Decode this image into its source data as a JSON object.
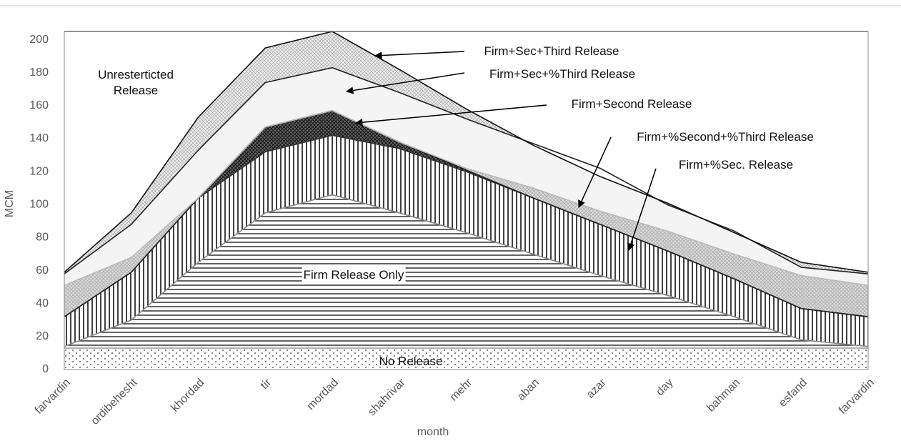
{
  "chart_data": {
    "type": "area",
    "x_label": "month",
    "y_label": "MCM",
    "categories": [
      "farvardin",
      "ordibehesht",
      "khordad",
      "tir",
      "mordad",
      "shahrivar",
      "mehr",
      "aban",
      "azar",
      "day",
      "bahman",
      "esfand",
      "farvardin"
    ],
    "ylim": [
      0,
      205
    ],
    "yticks": [
      0,
      20,
      40,
      60,
      80,
      100,
      120,
      140,
      160,
      180,
      200
    ],
    "grid": true,
    "series": [
      {
        "name": "No Release",
        "values": [
          13,
          13,
          13,
          13,
          13,
          13,
          13,
          13,
          13,
          13,
          13,
          13,
          13
        ]
      },
      {
        "name": "Firm Release Only",
        "values": [
          14,
          30,
          65,
          95,
          106,
          95,
          83,
          70,
          57,
          45,
          32,
          18,
          14
        ]
      },
      {
        "name": "Firm+%Sec. Release",
        "values": [
          32,
          59,
          104,
          132,
          142,
          134,
          120,
          104,
          88,
          72,
          55,
          37,
          32
        ]
      },
      {
        "name": "Firm+Second Release",
        "values": [
          32,
          59,
          104,
          147,
          157,
          138,
          121,
          104,
          88,
          72,
          55,
          37,
          32
        ]
      },
      {
        "name": "Firm+%Second+%Third Release",
        "values": [
          51,
          68,
          104,
          147,
          157,
          138,
          122,
          110,
          96,
          84,
          70,
          57,
          51
        ]
      },
      {
        "name": "Firm+Sec+%Third Release",
        "values": [
          58,
          88,
          133,
          174,
          183,
          168,
          152,
          137,
          122,
          100,
          84,
          62,
          58
        ]
      },
      {
        "name": "Firm+Sec+Third Release",
        "values": [
          59,
          95,
          153,
          195,
          205,
          182,
          158,
          136,
          117,
          101,
          83,
          65,
          59
        ]
      },
      {
        "name": "Unresterticted Release",
        "values": [
          205,
          205,
          205,
          205,
          205,
          205,
          205,
          205,
          205,
          205,
          205,
          205,
          205
        ]
      }
    ]
  }
}
